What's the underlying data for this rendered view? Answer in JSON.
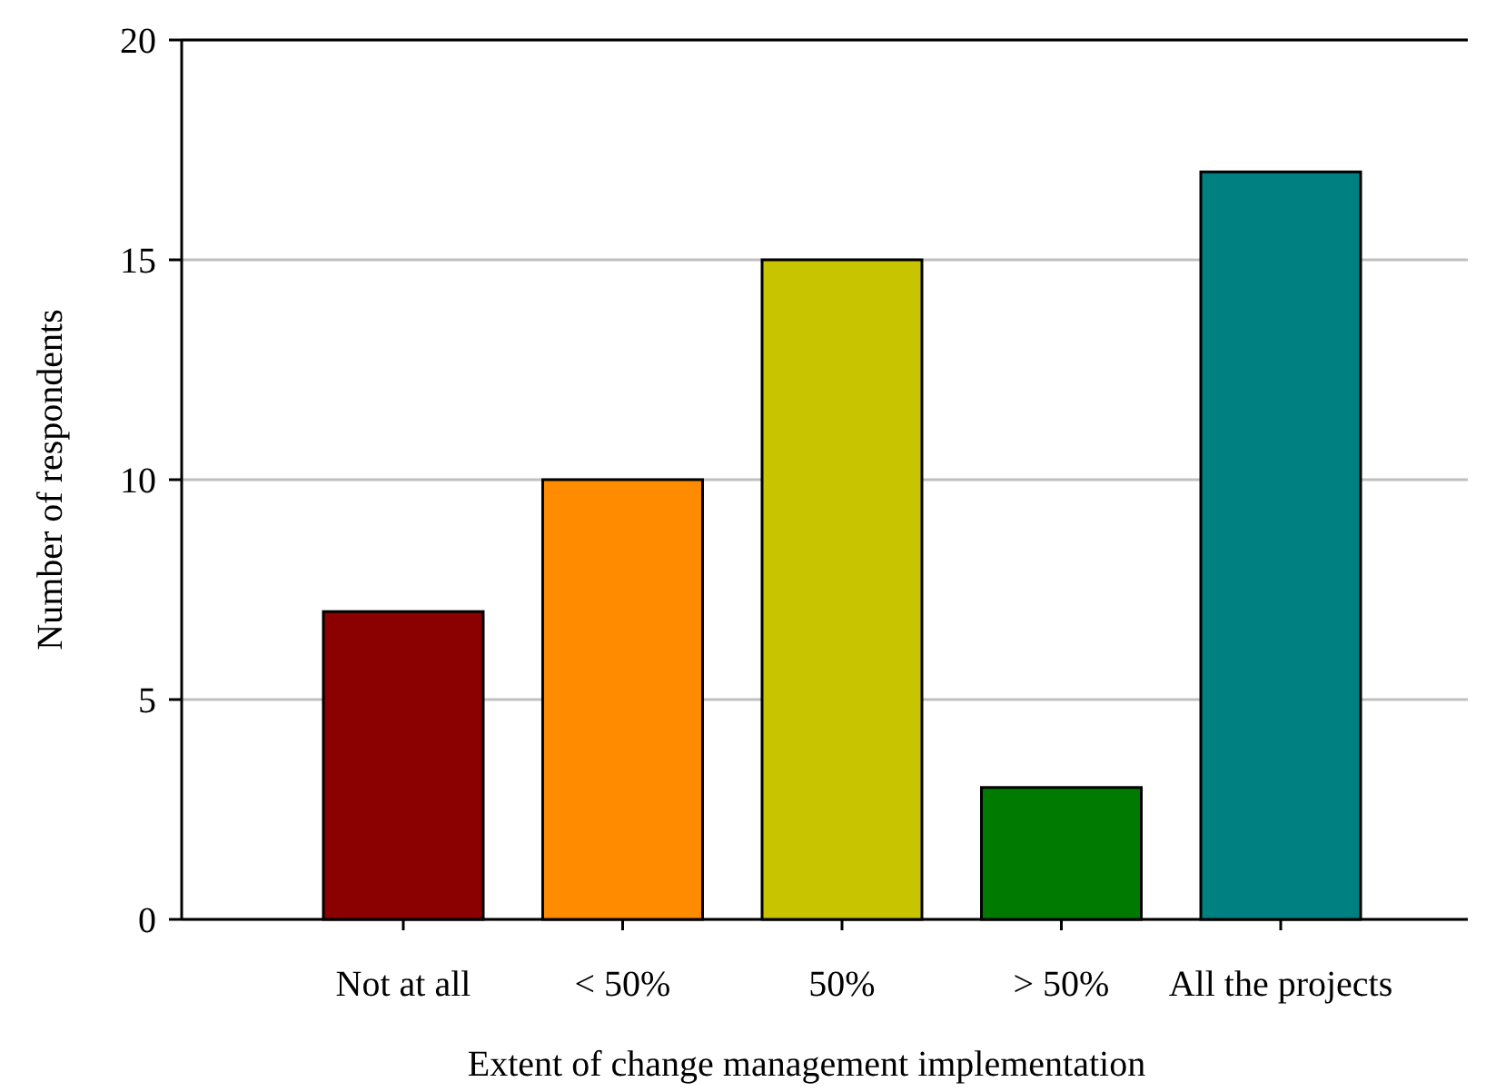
{
  "chart_data": {
    "type": "bar",
    "xlabel": "Extent of change management implementation",
    "ylabel": "Number of respondents",
    "categories": [
      "Not at all",
      "< 50%",
      "50%",
      "> 50%",
      "All the projects"
    ],
    "values": [
      7,
      10,
      15,
      3,
      17
    ],
    "colors": [
      "#8b0000",
      "#ff8c00",
      "#c8c400",
      "#007a00",
      "#008080"
    ],
    "ylim": [
      0,
      20
    ],
    "yticks": [
      0,
      5,
      10,
      15,
      20
    ],
    "grid": "y"
  }
}
